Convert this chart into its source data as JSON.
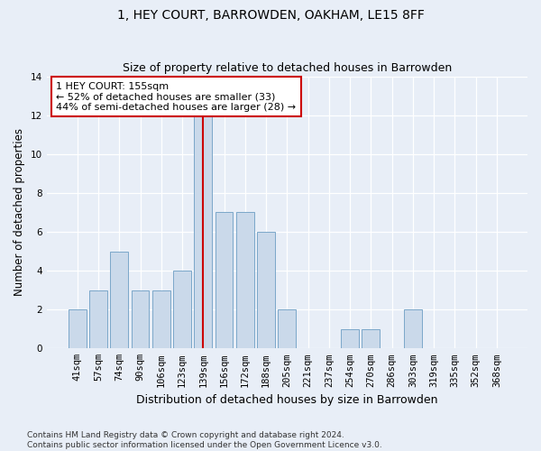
{
  "title": "1, HEY COURT, BARROWDEN, OAKHAM, LE15 8FF",
  "subtitle": "Size of property relative to detached houses in Barrowden",
  "xlabel": "Distribution of detached houses by size in Barrowden",
  "ylabel": "Number of detached properties",
  "categories": [
    "41sqm",
    "57sqm",
    "74sqm",
    "90sqm",
    "106sqm",
    "123sqm",
    "139sqm",
    "156sqm",
    "172sqm",
    "188sqm",
    "205sqm",
    "221sqm",
    "237sqm",
    "254sqm",
    "270sqm",
    "286sqm",
    "303sqm",
    "319sqm",
    "335sqm",
    "352sqm",
    "368sqm"
  ],
  "values": [
    2,
    3,
    5,
    3,
    3,
    4,
    12,
    7,
    7,
    6,
    2,
    0,
    0,
    1,
    1,
    0,
    2,
    0,
    0,
    0,
    0
  ],
  "bar_color": "#cad9ea",
  "bar_edgecolor": "#7ba7c9",
  "vline_index": 6,
  "vline_color": "#cc0000",
  "annotation_text": "1 HEY COURT: 155sqm\n← 52% of detached houses are smaller (33)\n44% of semi-detached houses are larger (28) →",
  "annotation_box_color": "white",
  "annotation_box_edgecolor": "#cc0000",
  "ylim": [
    0,
    14
  ],
  "yticks": [
    0,
    2,
    4,
    6,
    8,
    10,
    12,
    14
  ],
  "background_color": "#e8eef7",
  "footer_text": "Contains HM Land Registry data © Crown copyright and database right 2024.\nContains public sector information licensed under the Open Government Licence v3.0.",
  "title_fontsize": 10,
  "subtitle_fontsize": 9,
  "xlabel_fontsize": 9,
  "ylabel_fontsize": 8.5,
  "tick_fontsize": 7.5,
  "footer_fontsize": 6.5
}
